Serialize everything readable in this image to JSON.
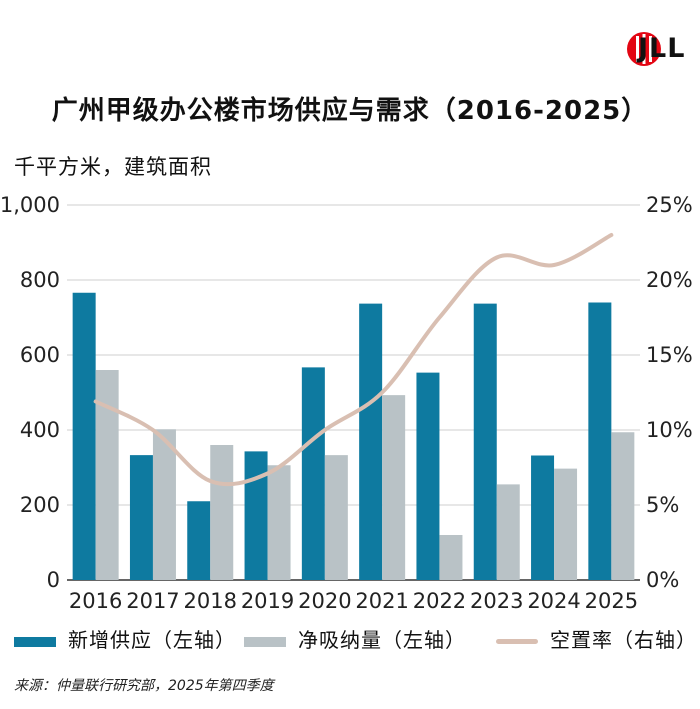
{
  "logo": {
    "text": "JLL",
    "accent": "#e30613"
  },
  "chart_data": {
    "type": "bar+line",
    "title": "广州甲级办公楼市场供应与需求（2016-2025）",
    "unit_label": "千平方米，建筑面积",
    "categories": [
      "2016",
      "2017",
      "2018",
      "2019",
      "2020",
      "2021",
      "2022",
      "2023",
      "2024",
      "2025"
    ],
    "series": [
      {
        "name": "新增供应（左轴）",
        "axis": "left",
        "kind": "bar",
        "color": "#0e7aa0",
        "values": [
          766,
          333,
          210,
          343,
          567,
          737,
          553,
          737,
          332,
          740
        ]
      },
      {
        "name": "净吸纳量（左轴）",
        "axis": "left",
        "kind": "bar",
        "color": "#b9c2c6",
        "values": [
          560,
          402,
          360,
          306,
          333,
          493,
          120,
          255,
          297,
          394
        ]
      },
      {
        "name": "空置率（右轴）",
        "axis": "right",
        "kind": "line",
        "color": "#d9bfb2",
        "values": [
          11.9,
          10.0,
          6.6,
          7.1,
          10.0,
          12.5,
          17.5,
          21.5,
          21.0,
          23.0
        ]
      }
    ],
    "left_axis": {
      "min": 0,
      "max": 1000,
      "ticks": [
        0,
        200,
        400,
        600,
        800,
        1000
      ],
      "tick_labels": [
        "0",
        "200",
        "400",
        "600",
        "800",
        "1,000"
      ]
    },
    "right_axis": {
      "min": 0,
      "max": 25,
      "ticks": [
        0,
        5,
        10,
        15,
        20,
        25
      ],
      "tick_labels": [
        "0%",
        "5%",
        "10%",
        "15%",
        "20%",
        "25%"
      ]
    },
    "grid": true,
    "legend_position": "bottom"
  },
  "source": "来源：仲量联行研究部，2025年第四季度"
}
